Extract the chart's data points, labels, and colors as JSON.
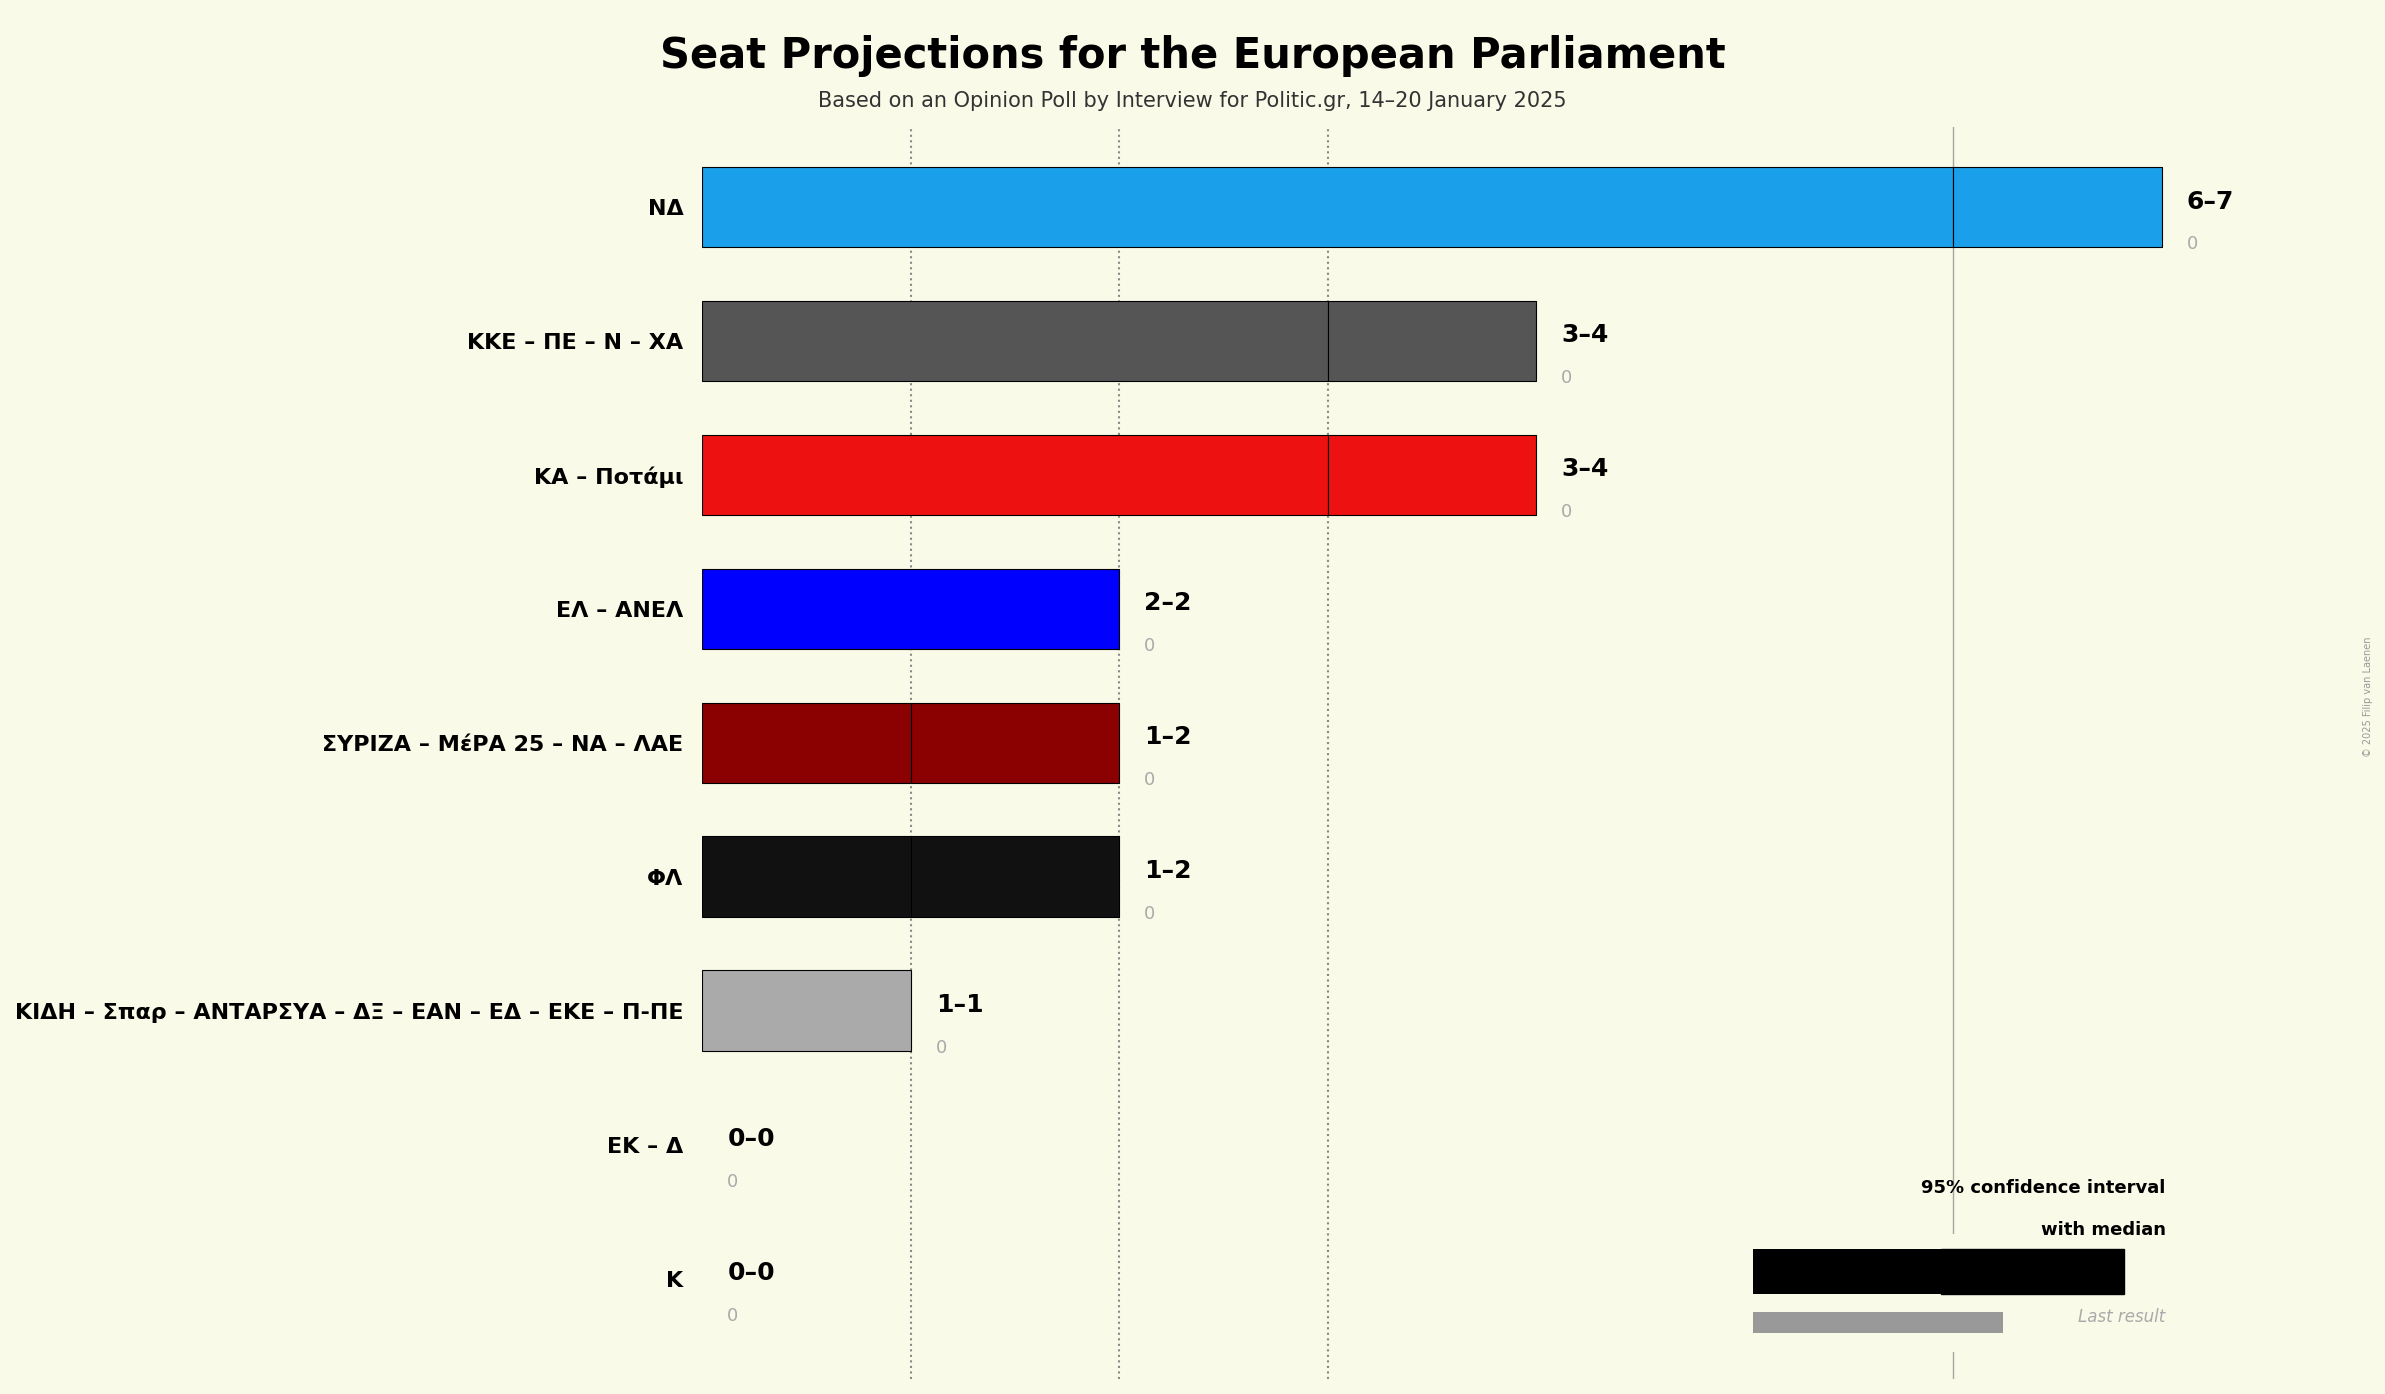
{
  "title": "Seat Projections for the European Parliament",
  "subtitle": "Based on an Opinion Poll by Interview for Politic.gr, 14–20 January 2025",
  "copyright": "© 2025 Filip van Laenen",
  "background_color": "#fafae8",
  "parties": [
    "ΝΔ",
    "ΚΚΕ – ΠΕ – Ν – ΧΑ",
    "ΚΑ – Ποτάμι",
    "ΕΛ – ΑΝΕΛ",
    "ΣΥΡΙΖΑ – ΜέΡΑ 25 – ΝΑ – ΛΑΕ",
    "ΦΛ",
    "ΚΙΔΗ – Σπαρ – ΑΝΤΑΡΣΥΑ – ΔΞ – ΕΑΝ – ΕΔ – ΕΚΕ – Π-ΠΕ",
    "ΕΚ – Δ",
    "Κ"
  ],
  "median_seats": [
    6,
    3,
    3,
    2,
    1,
    1,
    1,
    0,
    0
  ],
  "high_seats": [
    7,
    4,
    4,
    2,
    2,
    2,
    1,
    0,
    0
  ],
  "last_result": [
    0,
    0,
    0,
    0,
    0,
    0,
    0,
    0,
    0
  ],
  "labels": [
    "6–7",
    "3–4",
    "3–4",
    "2–2",
    "1–2",
    "1–2",
    "1–1",
    "0–0",
    "0–0"
  ],
  "bar_colors": [
    "#1a9fea",
    "#555555",
    "#ee1111",
    "#0000ff",
    "#8b0000",
    "#111111",
    "#aaaaaa",
    "#fafae8",
    "#fafae8"
  ],
  "hatch_patterns": [
    "xxxx",
    "xxxx",
    "////",
    "",
    "////",
    "xxxx",
    "",
    "",
    ""
  ],
  "dotted_line_x": [
    1,
    2,
    3
  ],
  "xlim_max": 8,
  "bar_height": 0.6,
  "label_fontsize": 18,
  "tick_fontsize": 16,
  "title_fontsize": 30,
  "subtitle_fontsize": 15
}
